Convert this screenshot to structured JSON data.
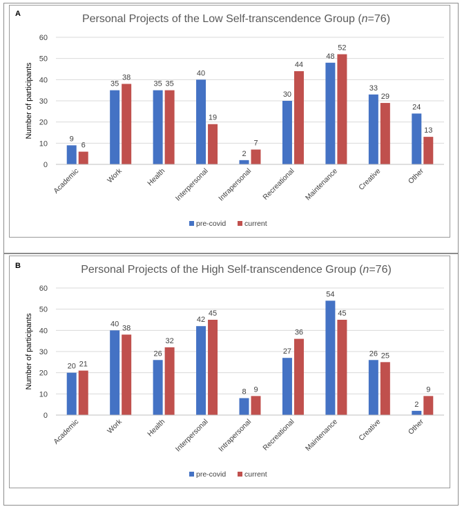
{
  "panels": [
    {
      "letter": "A",
      "title": "Personal Projects of the Low Self-transcendence Group",
      "title_n": "(n=76)",
      "title_prefix": " (",
      "title_italic": "n",
      "title_suffix": "=76)",
      "ylabel": "Number of participants"
    },
    {
      "letter": "B",
      "title": "Personal Projects of the High Self-transcendence Group",
      "title_n": "(n=76)",
      "title_prefix": " (",
      "title_italic": "n",
      "title_suffix": "=76)",
      "ylabel": "Number of participants"
    }
  ],
  "colors": {
    "pre_covid": "#4472c4",
    "current": "#c0504d",
    "grid": "#d9d9d9"
  },
  "chart_data": [
    {
      "type": "bar",
      "title": "Personal Projects of the Low Self-transcendence Group (n=76)",
      "ylabel": "Number of participants",
      "xlabel": "",
      "ylim": [
        0,
        60
      ],
      "yticks": [
        0,
        10,
        20,
        30,
        40,
        50,
        60
      ],
      "categories": [
        "Academic",
        "Work",
        "Health",
        "Interpersonal",
        "Intrapersonal",
        "Recreational",
        "Maintenance",
        "Creative",
        "Other"
      ],
      "series": [
        {
          "name": "pre-covid",
          "values": [
            9,
            35,
            35,
            40,
            2,
            30,
            48,
            33,
            24
          ]
        },
        {
          "name": "current",
          "values": [
            6,
            38,
            35,
            19,
            7,
            44,
            52,
            29,
            13
          ]
        }
      ],
      "grid": true,
      "legend": "bottom"
    },
    {
      "type": "bar",
      "title": "Personal Projects of the High Self-transcendence Group (n=76)",
      "ylabel": "Number of participants",
      "xlabel": "",
      "ylim": [
        0,
        60
      ],
      "yticks": [
        0,
        10,
        20,
        30,
        40,
        50,
        60
      ],
      "categories": [
        "Academic",
        "Work",
        "Health",
        "Interpersonal",
        "Intrapersonal",
        "Recreational",
        "Maintenance",
        "Creative",
        "Other"
      ],
      "series": [
        {
          "name": "pre-covid",
          "values": [
            20,
            40,
            26,
            42,
            8,
            27,
            54,
            26,
            2
          ]
        },
        {
          "name": "current",
          "values": [
            21,
            38,
            32,
            45,
            9,
            36,
            45,
            25,
            9
          ]
        }
      ],
      "grid": true,
      "legend": "bottom"
    }
  ]
}
